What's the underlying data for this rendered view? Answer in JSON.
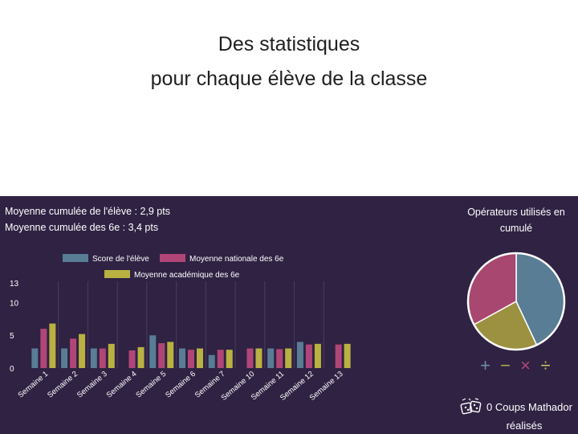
{
  "slide": {
    "title_line1": "Des statistiques",
    "title_line2": "pour chaque élève de la classe"
  },
  "stats": {
    "student_average": "Moyenne cumulée de l'élève : 2,9 pts",
    "class_average": "Moyenne cumulée des 6e : 3,4 pts"
  },
  "colors": {
    "panel_background": "#2f2243",
    "score": "#587d95",
    "national": "#b04677",
    "academic": "#b9b141",
    "pie_plus": "#587d95",
    "pie_minus": "#9c9140",
    "pie_times": "#a8476f"
  },
  "chart_data": [
    {
      "type": "bar",
      "categories": [
        "Semaine 1",
        "Semaine 2",
        "Semaine 3",
        "Semaine 4",
        "Semaine 5",
        "Semaine 6",
        "Semaine 7",
        "Semaine 10",
        "Semaine 11",
        "Semaine 12",
        "Semaine 13"
      ],
      "series": [
        {
          "name": "Score de l'élève",
          "color": "#587d95",
          "values": [
            3,
            3,
            3,
            0,
            5,
            3,
            2,
            0,
            3,
            4,
            0
          ]
        },
        {
          "name": "Moyenne nationale des 6e",
          "color": "#b04677",
          "values": [
            6,
            4.5,
            3,
            2.7,
            3.8,
            2.8,
            2.8,
            3,
            2.9,
            3.6,
            3.6
          ]
        },
        {
          "name": "Moyenne académique des 6e",
          "color": "#b9b141",
          "values": [
            6.8,
            5.2,
            3.7,
            3.2,
            4,
            3,
            2.8,
            3,
            3,
            3.7,
            3.7
          ]
        }
      ],
      "y_ticks": [
        "0",
        "5",
        "10",
        "13"
      ],
      "ylim": [
        0,
        13
      ],
      "grid": "vertical",
      "legend": "top"
    },
    {
      "type": "pie",
      "title": "Opérateurs utilisés en cumulé",
      "slices": [
        {
          "label": "+",
          "value": 43,
          "color": "#587d95"
        },
        {
          "label": "−",
          "value": 24,
          "color": "#9c9140"
        },
        {
          "label": "×",
          "value": 33,
          "color": "#a8476f"
        }
      ]
    }
  ],
  "operators": {
    "plus": "+",
    "minus": "−",
    "times": "×",
    "divide": "÷",
    "plus_color": "#6d8fa6",
    "minus_color": "#b4aa4a",
    "times_color": "#b04677",
    "divide_color": "#c9c05a"
  },
  "mathador": {
    "icon": "dice-icon",
    "line1": "0 Coups Mathador",
    "line2": "réalisés"
  }
}
